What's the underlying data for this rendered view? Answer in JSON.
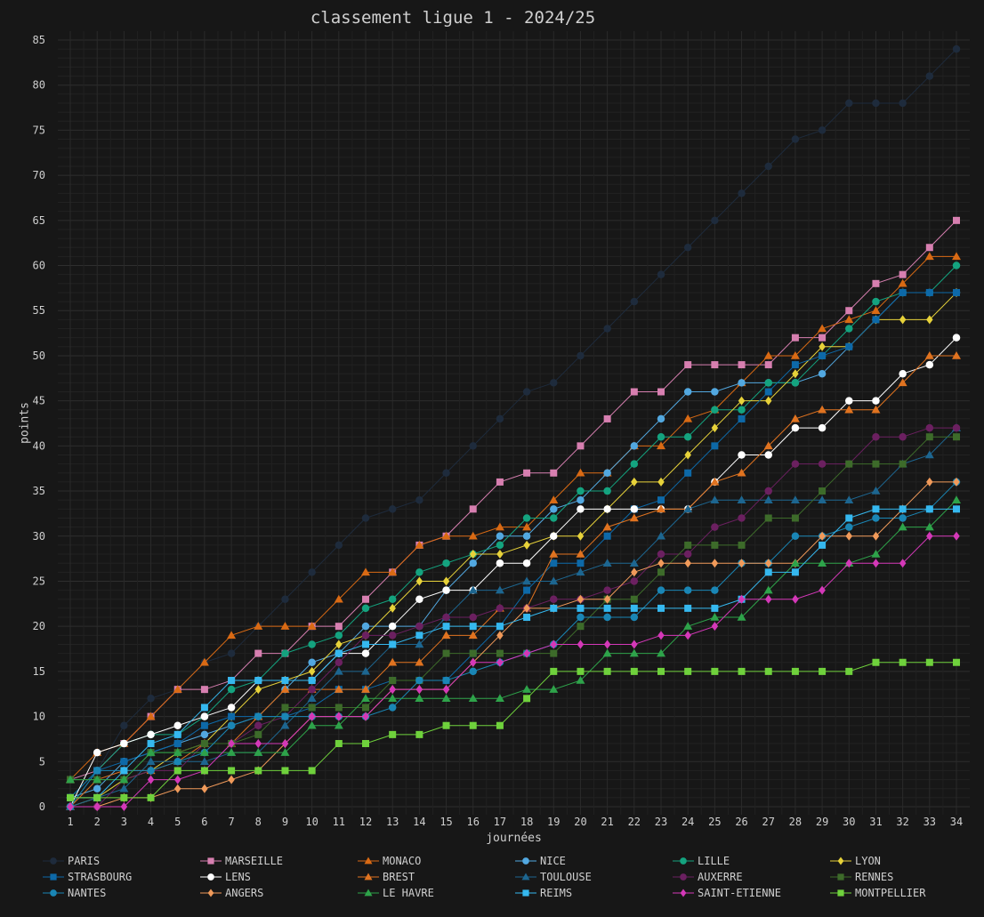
{
  "chart_data": {
    "type": "line",
    "title": "classement ligue 1 - 2024/25",
    "xlabel": "journées",
    "ylabel": "points",
    "x": [
      1,
      2,
      3,
      4,
      5,
      6,
      7,
      8,
      9,
      10,
      11,
      12,
      13,
      14,
      15,
      16,
      17,
      18,
      19,
      20,
      21,
      22,
      23,
      24,
      25,
      26,
      27,
      28,
      29,
      30,
      31,
      32,
      33,
      34
    ],
    "xlim": [
      1,
      34
    ],
    "ylim": [
      0,
      85
    ],
    "yticks": [
      0,
      5,
      10,
      15,
      20,
      25,
      30,
      35,
      40,
      45,
      50,
      55,
      60,
      65,
      70,
      75,
      80,
      85
    ],
    "grid": true,
    "legend_position": "bottom",
    "series": [
      {
        "name": "PARIS",
        "color": "#1e2b3c",
        "marker": "circle",
        "values": [
          1,
          4,
          9,
          12,
          13,
          16,
          17,
          20,
          23,
          26,
          29,
          32,
          33,
          34,
          37,
          40,
          43,
          46,
          47,
          50,
          53,
          56,
          59,
          62,
          65,
          68,
          71,
          74,
          75,
          78,
          78,
          78,
          81,
          84
        ]
      },
      {
        "name": "MARSEILLE",
        "color": "#d77fb0",
        "marker": "square",
        "values": [
          3,
          4,
          7,
          10,
          13,
          13,
          14,
          17,
          17,
          20,
          20,
          23,
          26,
          29,
          30,
          33,
          36,
          37,
          37,
          40,
          43,
          46,
          46,
          49,
          49,
          49,
          49,
          52,
          52,
          55,
          58,
          59,
          62,
          65
        ]
      },
      {
        "name": "MONACO",
        "color": "#d96a14",
        "marker": "triangle",
        "values": [
          3,
          6,
          7,
          10,
          13,
          16,
          19,
          20,
          20,
          20,
          23,
          26,
          26,
          29,
          30,
          30,
          31,
          31,
          34,
          37,
          37,
          40,
          40,
          43,
          44,
          47,
          50,
          50,
          53,
          54,
          55,
          58,
          61,
          61
        ]
      },
      {
        "name": "NICE",
        "color": "#52a8e0",
        "marker": "circle",
        "values": [
          1,
          2,
          5,
          6,
          7,
          8,
          9,
          10,
          13,
          16,
          17,
          20,
          20,
          20,
          24,
          27,
          30,
          30,
          33,
          34,
          37,
          40,
          43,
          46,
          46,
          47,
          47,
          47,
          48,
          51,
          54,
          57,
          57,
          57
        ]
      },
      {
        "name": "LILLE",
        "color": "#14a37f",
        "marker": "circle",
        "values": [
          1,
          4,
          7,
          8,
          8,
          10,
          13,
          14,
          17,
          18,
          19,
          22,
          23,
          26,
          27,
          28,
          29,
          32,
          32,
          35,
          35,
          38,
          41,
          41,
          44,
          44,
          47,
          47,
          50,
          53,
          56,
          57,
          57,
          60
        ]
      },
      {
        "name": "LYON",
        "color": "#e7d23a",
        "marker": "diamond",
        "values": [
          0,
          1,
          3,
          4,
          6,
          7,
          10,
          13,
          14,
          15,
          18,
          19,
          22,
          25,
          25,
          28,
          28,
          29,
          30,
          30,
          33,
          36,
          36,
          39,
          42,
          45,
          45,
          48,
          51,
          51,
          54,
          54,
          54,
          57
        ]
      },
      {
        "name": "STRASBOURG",
        "color": "#0d69a8",
        "marker": "square",
        "values": [
          1,
          4,
          5,
          6,
          7,
          9,
          10,
          10,
          10,
          11,
          13,
          13,
          14,
          14,
          14,
          17,
          20,
          24,
          27,
          27,
          30,
          33,
          34,
          37,
          40,
          43,
          46,
          49,
          50,
          51,
          54,
          57,
          57,
          57
        ]
      },
      {
        "name": "LENS",
        "color": "#ffffff",
        "marker": "circle",
        "values": [
          0,
          6,
          7,
          8,
          9,
          10,
          11,
          14,
          14,
          14,
          17,
          17,
          20,
          23,
          24,
          24,
          27,
          27,
          30,
          33,
          33,
          33,
          33,
          33,
          36,
          39,
          39,
          42,
          42,
          45,
          45,
          48,
          49,
          52
        ]
      },
      {
        "name": "BREST",
        "color": "#e07320",
        "marker": "triangle",
        "values": [
          0,
          3,
          4,
          4,
          5,
          7,
          7,
          10,
          13,
          13,
          13,
          13,
          16,
          16,
          19,
          19,
          22,
          22,
          28,
          28,
          31,
          32,
          33,
          33,
          36,
          37,
          40,
          43,
          44,
          44,
          44,
          47,
          50,
          50
        ]
      },
      {
        "name": "TOULOUSE",
        "color": "#1d6690",
        "marker": "triangle",
        "values": [
          0,
          1,
          2,
          5,
          5,
          5,
          6,
          6,
          9,
          12,
          15,
          15,
          18,
          18,
          21,
          24,
          24,
          25,
          25,
          26,
          27,
          27,
          30,
          33,
          34,
          34,
          34,
          34,
          34,
          34,
          35,
          38,
          39,
          42
        ]
      },
      {
        "name": "AUXERRE",
        "color": "#6b2060",
        "marker": "circle",
        "values": [
          0,
          0,
          3,
          4,
          4,
          7,
          7,
          9,
          10,
          13,
          16,
          19,
          19,
          20,
          21,
          21,
          22,
          22,
          23,
          23,
          24,
          25,
          28,
          28,
          31,
          32,
          35,
          38,
          38,
          38,
          41,
          41,
          42,
          42
        ]
      },
      {
        "name": "RENNES",
        "color": "#3d6b2a",
        "marker": "square",
        "values": [
          3,
          3,
          3,
          6,
          6,
          7,
          7,
          8,
          11,
          11,
          11,
          11,
          14,
          14,
          17,
          17,
          17,
          17,
          17,
          20,
          23,
          23,
          26,
          29,
          29,
          29,
          32,
          32,
          35,
          38,
          38,
          38,
          41,
          41
        ]
      },
      {
        "name": "NANTES",
        "color": "#1a86b5",
        "marker": "circle",
        "values": [
          0,
          4,
          4,
          4,
          5,
          6,
          9,
          10,
          10,
          10,
          10,
          10,
          11,
          14,
          14,
          15,
          16,
          17,
          18,
          21,
          21,
          21,
          24,
          24,
          24,
          27,
          27,
          30,
          30,
          31,
          32,
          32,
          33,
          36
        ]
      },
      {
        "name": "ANGERS",
        "color": "#f09a5a",
        "marker": "diamond",
        "values": [
          0,
          0,
          1,
          1,
          2,
          2,
          3,
          4,
          7,
          10,
          10,
          10,
          13,
          13,
          13,
          16,
          19,
          22,
          22,
          23,
          23,
          26,
          27,
          27,
          27,
          27,
          27,
          27,
          30,
          30,
          30,
          33,
          36,
          36
        ]
      },
      {
        "name": "LE HAVRE",
        "color": "#2ea34a",
        "marker": "triangle",
        "values": [
          3,
          3,
          3,
          6,
          6,
          6,
          6,
          6,
          6,
          9,
          9,
          12,
          12,
          12,
          12,
          12,
          12,
          13,
          13,
          14,
          17,
          17,
          17,
          20,
          21,
          21,
          24,
          27,
          27,
          27,
          28,
          31,
          31,
          34
        ]
      },
      {
        "name": "REIMS",
        "color": "#35b8ef",
        "marker": "square",
        "values": [
          1,
          1,
          4,
          7,
          8,
          11,
          14,
          14,
          14,
          14,
          17,
          18,
          18,
          19,
          20,
          20,
          20,
          21,
          22,
          22,
          22,
          22,
          22,
          22,
          22,
          23,
          26,
          26,
          29,
          32,
          33,
          33,
          33,
          33
        ]
      },
      {
        "name": "SAINT-ETIENNE",
        "color": "#d438b8",
        "marker": "diamond",
        "values": [
          0,
          0,
          0,
          3,
          3,
          4,
          7,
          7,
          7,
          10,
          10,
          10,
          13,
          13,
          13,
          16,
          16,
          17,
          18,
          18,
          18,
          18,
          19,
          19,
          20,
          23,
          23,
          23,
          24,
          27,
          27,
          27,
          30,
          30
        ]
      },
      {
        "name": "MONTPELLIER",
        "color": "#6fd13c",
        "marker": "square",
        "values": [
          1,
          1,
          1,
          1,
          4,
          4,
          4,
          4,
          4,
          4,
          7,
          7,
          8,
          8,
          9,
          9,
          9,
          12,
          15,
          15,
          15,
          15,
          15,
          15,
          15,
          15,
          15,
          15,
          15,
          15,
          16,
          16,
          16,
          16
        ]
      }
    ]
  }
}
